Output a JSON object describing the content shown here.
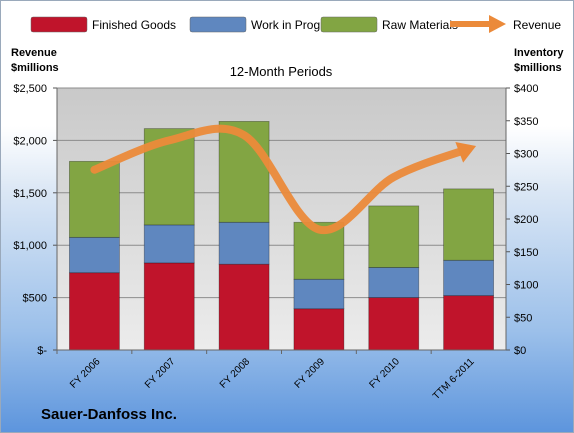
{
  "chart_data": {
    "type": "bar",
    "stacked": true,
    "title": "12-Month Periods",
    "company": "Sauer-Danfoss Inc.",
    "categories": [
      "FY 2006",
      "FY 2007",
      "FY 2008",
      "FY 2009",
      "FY 2010",
      "TTM 6-2011"
    ],
    "left_axis": {
      "label_line1": "Revenue",
      "label_line2": "$millions",
      "ylim": [
        0,
        2500
      ],
      "ticks": [
        "$-",
        "$500",
        "$1,000",
        "$1,500",
        "$2,000",
        "$2,500"
      ]
    },
    "right_axis": {
      "label_line1": "Inventory",
      "label_line2": "$millions",
      "ylim": [
        0,
        400
      ],
      "ticks": [
        "$0",
        "$50",
        "$100",
        "$150",
        "$200",
        "$250",
        "$300",
        "$350",
        "$400"
      ]
    },
    "series": [
      {
        "name": "Finished Goods",
        "axis": "right",
        "kind": "bar",
        "color": "#c0142b",
        "values": [
          118,
          133,
          131,
          63,
          80,
          83
        ]
      },
      {
        "name": "Work in Progress",
        "axis": "right",
        "kind": "bar",
        "color": "#5f87bf",
        "values": [
          54,
          58,
          64,
          45,
          46,
          54
        ]
      },
      {
        "name": "Raw Materials",
        "axis": "right",
        "kind": "bar",
        "color": "#82a543",
        "values": [
          116,
          147,
          154,
          87,
          94,
          109
        ]
      },
      {
        "name": "Revenue",
        "axis": "left",
        "kind": "line",
        "color": "#eb8a3a",
        "values": [
          1720,
          2000,
          2050,
          1150,
          1650,
          1920
        ]
      }
    ],
    "grid": true,
    "legend_position": "top"
  }
}
